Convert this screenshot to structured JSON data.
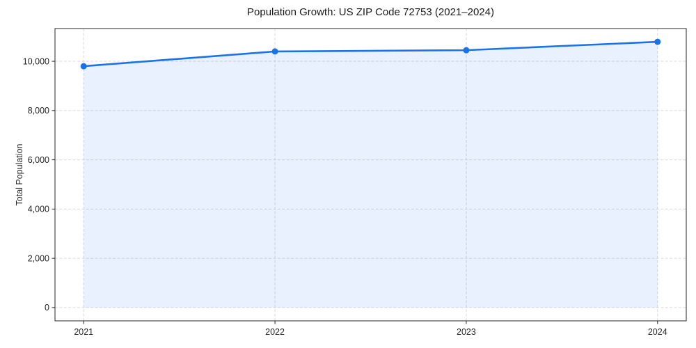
{
  "chart_data": {
    "type": "area",
    "title": "Population Growth: US ZIP Code 72753 (2021–2024)",
    "xlabel": "",
    "ylabel": "Total Population",
    "x": [
      2021,
      2022,
      2023,
      2024
    ],
    "x_tick_labels": [
      "2021",
      "2022",
      "2023",
      "2024"
    ],
    "series": [
      {
        "name": "Total Population",
        "values": [
          9800,
          10400,
          10450,
          10790
        ]
      }
    ],
    "y_ticks": [
      0,
      2000,
      4000,
      6000,
      8000,
      10000
    ],
    "y_tick_labels": [
      "0",
      "2,000",
      "4,000",
      "6,000",
      "8,000",
      "10,000"
    ],
    "xlim": [
      2020.85,
      2024.15
    ],
    "ylim": [
      -540,
      11330
    ],
    "grid": true,
    "grid_style": "dashed",
    "legend": "none",
    "marker": "circle",
    "colors": {
      "line": "#1a73e8",
      "fill": "rgba(26,115,232,0.10)",
      "grid": "#d9d9d9",
      "spine": "#262626",
      "tick_text": "#262626",
      "title_text": "#1a1a1a",
      "background": "#ffffff"
    }
  }
}
